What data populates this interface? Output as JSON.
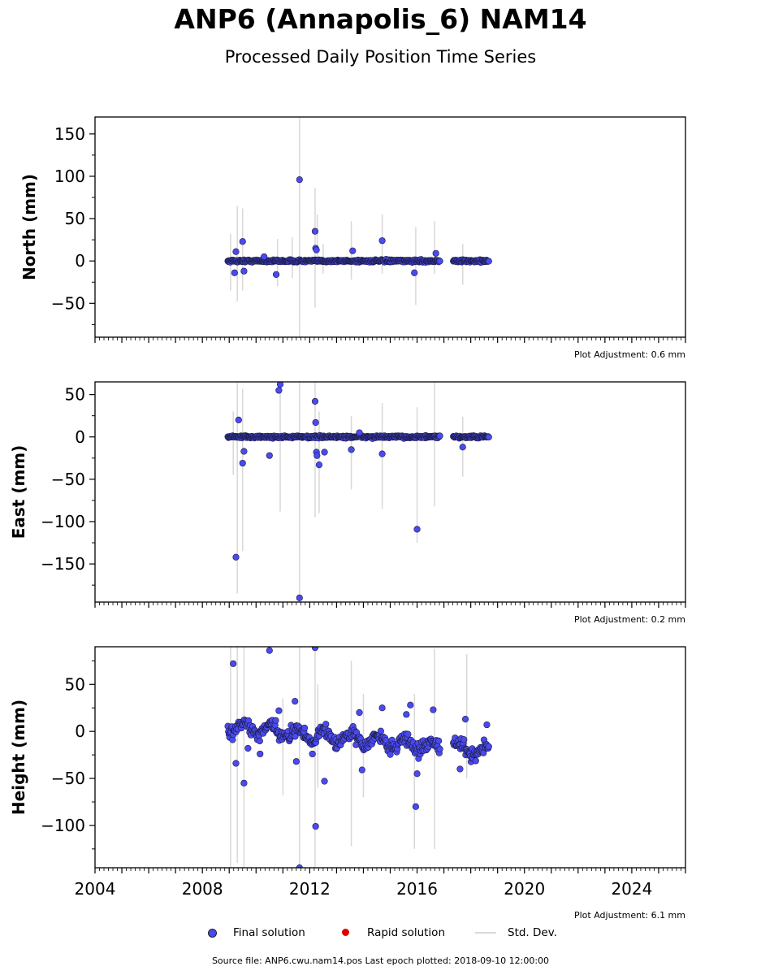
{
  "header": {
    "title": "ANP6 (Annapolis_6) NAM14",
    "subtitle": "Processed Daily Position Time Series"
  },
  "colors": {
    "final": "#4a4af0",
    "rapid": "#e00000",
    "stddev": "#d8d8d8"
  },
  "legend": {
    "final_label": "Final solution",
    "rapid_label": "Rapid solution",
    "std_label": "Std. Dev."
  },
  "footer": {
    "source": "Source file: ANP6.cwu.nam14.pos  Last epoch plotted: 2018-09-10 12:00:00"
  },
  "chart_data": [
    {
      "type": "scatter",
      "ylabel": "North (mm)",
      "adjustment": "Plot Adjustment: 0.6 mm",
      "xlim": [
        2004,
        2026
      ],
      "ylim": [
        -90,
        170
      ],
      "yticks": [
        150,
        100,
        50,
        0,
        -50
      ],
      "ytick_labels": [
        "150",
        "100",
        "50",
        "0",
        "−50"
      ],
      "segments": [
        [
          2008.95,
          2016.85
        ],
        [
          2017.35,
          2018.69
        ]
      ],
      "noise": 2,
      "trend": [
        0,
        0
      ],
      "outliers": [
        [
          2009.2,
          -14
        ],
        [
          2009.25,
          11
        ],
        [
          2009.5,
          23
        ],
        [
          2009.55,
          -12
        ],
        [
          2010.3,
          5
        ],
        [
          2010.75,
          -16
        ],
        [
          2011.62,
          96
        ],
        [
          2012.2,
          35
        ],
        [
          2012.22,
          15
        ],
        [
          2012.25,
          13
        ],
        [
          2013.6,
          12
        ],
        [
          2014.7,
          24
        ],
        [
          2015.9,
          -14
        ],
        [
          2016.7,
          9
        ]
      ],
      "stddev_bars": [
        [
          2009.05,
          -35,
          32
        ],
        [
          2009.3,
          -48,
          65
        ],
        [
          2009.5,
          -35,
          62
        ],
        [
          2010.8,
          -30,
          26
        ],
        [
          2011.35,
          -20,
          28
        ],
        [
          2011.62,
          -90,
          170
        ],
        [
          2012.2,
          -55,
          86
        ],
        [
          2012.28,
          -5,
          55
        ],
        [
          2012.5,
          -15,
          20
        ],
        [
          2013.55,
          -22,
          47
        ],
        [
          2014.7,
          -15,
          55
        ],
        [
          2015.95,
          -52,
          40
        ],
        [
          2016.65,
          -15,
          47
        ],
        [
          2017.7,
          -28,
          20
        ]
      ]
    },
    {
      "type": "scatter",
      "ylabel": "East (mm)",
      "adjustment": "Plot Adjustment: 0.2 mm",
      "xlim": [
        2004,
        2026
      ],
      "ylim": [
        -195,
        65
      ],
      "yticks": [
        50,
        0,
        -50,
        -100,
        -150
      ],
      "ytick_labels": [
        "50",
        "0",
        "−50",
        "−100",
        "−150"
      ],
      "segments": [
        [
          2008.95,
          2016.85
        ],
        [
          2017.35,
          2018.69
        ]
      ],
      "noise": 2,
      "trend": [
        0,
        0
      ],
      "outliers": [
        [
          2009.25,
          -142
        ],
        [
          2009.35,
          20
        ],
        [
          2009.5,
          -31
        ],
        [
          2009.55,
          -17
        ],
        [
          2010.5,
          -22
        ],
        [
          2010.85,
          55
        ],
        [
          2010.9,
          62
        ],
        [
          2011.62,
          -190
        ],
        [
          2012.2,
          42
        ],
        [
          2012.22,
          17
        ],
        [
          2012.25,
          -18
        ],
        [
          2012.27,
          -22
        ],
        [
          2012.35,
          -33
        ],
        [
          2012.55,
          -18
        ],
        [
          2013.55,
          -15
        ],
        [
          2013.85,
          5
        ],
        [
          2014.7,
          -20
        ],
        [
          2016.0,
          -109
        ],
        [
          2017.7,
          -12
        ]
      ],
      "stddev_bars": [
        [
          2009.15,
          -45,
          30
        ],
        [
          2009.3,
          -185,
          65
        ],
        [
          2009.5,
          -135,
          57
        ],
        [
          2010.9,
          -88,
          65
        ],
        [
          2011.62,
          -195,
          65
        ],
        [
          2012.2,
          -95,
          65
        ],
        [
          2012.35,
          -90,
          30
        ],
        [
          2013.55,
          -62,
          25
        ],
        [
          2014.7,
          -85,
          40
        ],
        [
          2016.0,
          -125,
          35
        ],
        [
          2016.65,
          -82,
          65
        ],
        [
          2017.7,
          -47,
          24
        ]
      ]
    },
    {
      "type": "scatter",
      "ylabel": "Height (mm)",
      "adjustment": "Plot Adjustment: 6.1 mm",
      "xlim": [
        2004,
        2026
      ],
      "ylim": [
        -145,
        90
      ],
      "yticks": [
        50,
        0,
        -50,
        -100
      ],
      "ytick_labels": [
        "50",
        "0",
        "−50",
        "−100"
      ],
      "xticks": [
        2004,
        2008,
        2012,
        2016,
        2020,
        2024
      ],
      "xtick_labels": [
        "2004",
        "2008",
        "2012",
        "2016",
        "2020",
        "2024"
      ],
      "segments": [
        [
          2008.95,
          2016.85
        ],
        [
          2017.35,
          2018.69
        ]
      ],
      "noise": 10,
      "trend": [
        5,
        -22
      ],
      "outliers": [
        [
          2009.15,
          72
        ],
        [
          2009.25,
          -34
        ],
        [
          2009.55,
          -55
        ],
        [
          2009.7,
          -18
        ],
        [
          2010.15,
          -24
        ],
        [
          2010.5,
          86
        ],
        [
          2010.85,
          22
        ],
        [
          2011.45,
          32
        ],
        [
          2011.5,
          -32
        ],
        [
          2011.62,
          -145
        ],
        [
          2012.1,
          -24
        ],
        [
          2012.2,
          89
        ],
        [
          2012.22,
          -101
        ],
        [
          2012.55,
          -53
        ],
        [
          2013.85,
          20
        ],
        [
          2013.95,
          -41
        ],
        [
          2014.7,
          25
        ],
        [
          2015.6,
          18
        ],
        [
          2015.75,
          28
        ],
        [
          2015.95,
          -80
        ],
        [
          2016.0,
          -45
        ],
        [
          2016.6,
          23
        ],
        [
          2017.6,
          -40
        ],
        [
          2017.8,
          13
        ],
        [
          2018.6,
          7
        ]
      ],
      "stddev_bars": [
        [
          2009.05,
          -145,
          90
        ],
        [
          2009.3,
          -140,
          90
        ],
        [
          2009.55,
          -145,
          90
        ],
        [
          2011.0,
          -68,
          35
        ],
        [
          2011.62,
          -145,
          90
        ],
        [
          2012.2,
          -145,
          90
        ],
        [
          2012.3,
          -60,
          50
        ],
        [
          2013.55,
          -122,
          75
        ],
        [
          2014.0,
          -70,
          40
        ],
        [
          2015.9,
          -125,
          40
        ],
        [
          2016.65,
          -125,
          88
        ],
        [
          2017.85,
          -50,
          82
        ]
      ]
    }
  ]
}
